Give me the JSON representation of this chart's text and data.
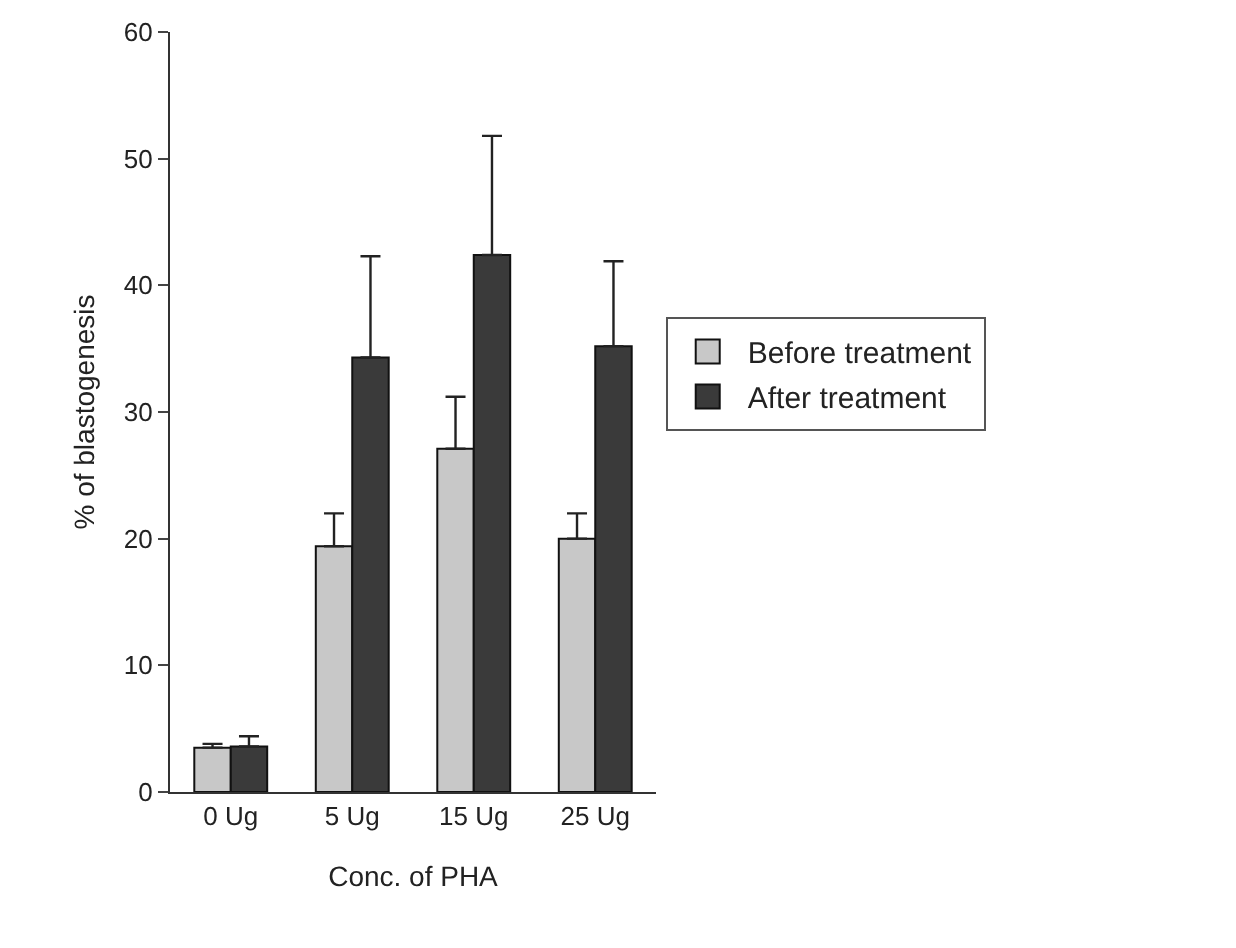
{
  "chart_data": {
    "type": "bar",
    "xlabel": "Conc. of PHA",
    "ylabel": "% of blastogenesis",
    "categories": [
      "0 Ug",
      "5 Ug",
      "15 Ug",
      "25 Ug"
    ],
    "series": [
      {
        "name": "Before treatment",
        "color": "#c8c8c8",
        "values": [
          3.5,
          19.4,
          27.1,
          20.0
        ],
        "errors": [
          0.3,
          2.6,
          4.1,
          2.0
        ]
      },
      {
        "name": "After treatment",
        "color": "#3a3a3a",
        "values": [
          3.6,
          34.3,
          42.4,
          35.2
        ],
        "errors": [
          0.8,
          8.0,
          9.4,
          6.7
        ]
      }
    ],
    "ylim": [
      0,
      60
    ],
    "yticks": [
      0,
      10,
      20,
      30,
      40,
      50,
      60
    ],
    "grid": false,
    "legend": "right"
  }
}
